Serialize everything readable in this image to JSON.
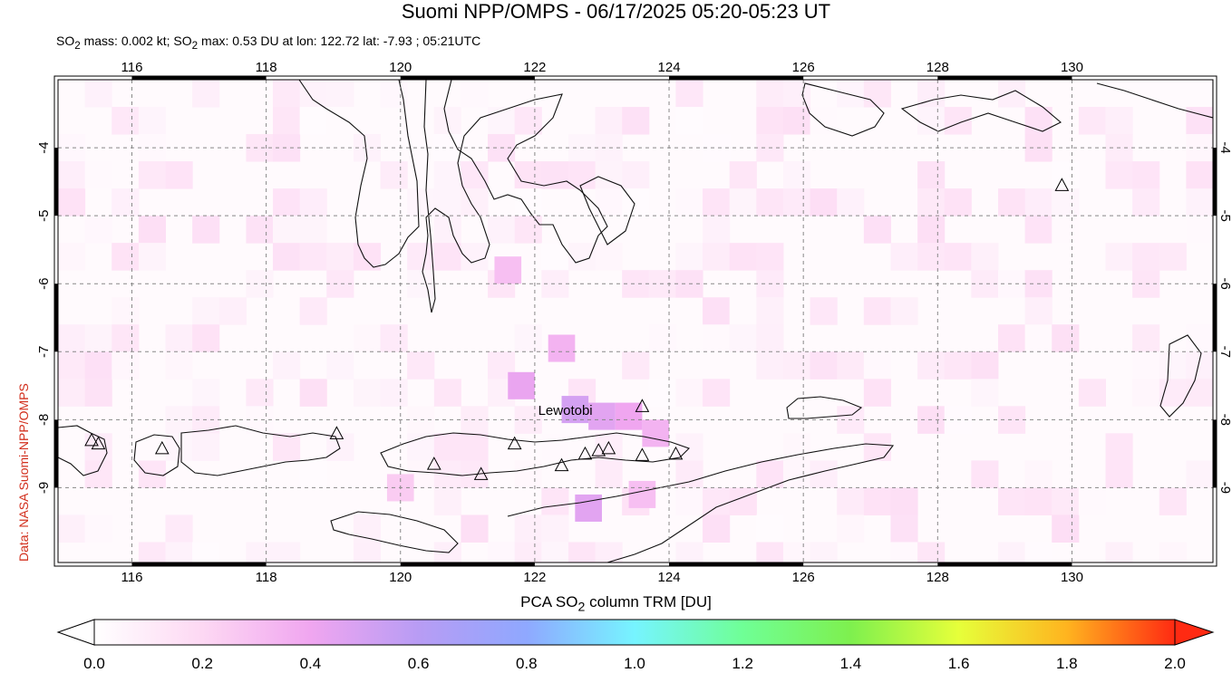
{
  "title": "Suomi NPP/OMPS - 06/17/2025 05:20-05:23 UT",
  "subtitle": {
    "p1": "SO",
    "s1": "2",
    "p2": " mass: 0.002 kt; SO",
    "s2": "2",
    "p3": " max: 0.53 DU at lon: 122.72 lat: -7.93 ; 05:21UTC"
  },
  "credit": "Data: NASA Suomi-NPP/OMPS",
  "colorbar_label": {
    "pre": "PCA SO",
    "sub": "2",
    "post": " column TRM [DU]"
  },
  "map": {
    "lon_range": [
      114.9,
      132.1
    ],
    "lat_range": [
      -3.0,
      -10.1
    ],
    "lon_ticks": [
      "116",
      "118",
      "120",
      "122",
      "124",
      "126",
      "128",
      "130"
    ],
    "lat_ticks": [
      "-4",
      "-5",
      "-6",
      "-7",
      "-8",
      "-9"
    ],
    "volcano_label": "Lewotobi",
    "grid_lines": true
  },
  "colorbar": {
    "ticks": [
      "0.0",
      "0.2",
      "0.4",
      "0.6",
      "0.8",
      "1.0",
      "1.2",
      "1.4",
      "1.6",
      "1.8",
      "2.0"
    ],
    "colors": [
      "#ffffff",
      "#fdd8f3",
      "#f0a6f0",
      "#b89cf4",
      "#8fa8ff",
      "#76f4ff",
      "#6fff96",
      "#7ef04e",
      "#e6ff3a",
      "#ffb41f",
      "#ff2a12"
    ]
  },
  "volcanoes": [
    {
      "lon": 115.4,
      "lat": -8.3
    },
    {
      "lon": 115.5,
      "lat": -8.35
    },
    {
      "lon": 116.45,
      "lat": -8.42
    },
    {
      "lon": 119.05,
      "lat": -8.2
    },
    {
      "lon": 120.5,
      "lat": -8.65
    },
    {
      "lon": 121.2,
      "lat": -8.8
    },
    {
      "lon": 121.7,
      "lat": -8.35
    },
    {
      "lon": 122.4,
      "lat": -8.67
    },
    {
      "lon": 122.75,
      "lat": -8.5
    },
    {
      "lon": 122.95,
      "lat": -8.45
    },
    {
      "lon": 123.1,
      "lat": -8.42
    },
    {
      "lon": 123.6,
      "lat": -7.8
    },
    {
      "lon": 123.6,
      "lat": -8.52
    },
    {
      "lon": 124.1,
      "lat": -8.5
    },
    {
      "lon": 129.85,
      "lat": -4.55
    }
  ],
  "so2_cells": [
    {
      "lon": 122.6,
      "lat": -7.85,
      "v": 0.5
    },
    {
      "lon": 123.0,
      "lat": -7.95,
      "v": 0.45
    },
    {
      "lon": 123.4,
      "lat": -7.95,
      "v": 0.4
    },
    {
      "lon": 121.8,
      "lat": -7.5,
      "v": 0.42
    },
    {
      "lon": 122.8,
      "lat": -9.3,
      "v": 0.45
    },
    {
      "lon": 122.4,
      "lat": -6.95,
      "v": 0.35
    },
    {
      "lon": 121.6,
      "lat": -5.8,
      "v": 0.3
    },
    {
      "lon": 123.8,
      "lat": -8.2,
      "v": 0.35
    },
    {
      "lon": 123.6,
      "lat": -9.1,
      "v": 0.3
    },
    {
      "lon": 120.0,
      "lat": -9.0,
      "v": 0.25
    }
  ]
}
